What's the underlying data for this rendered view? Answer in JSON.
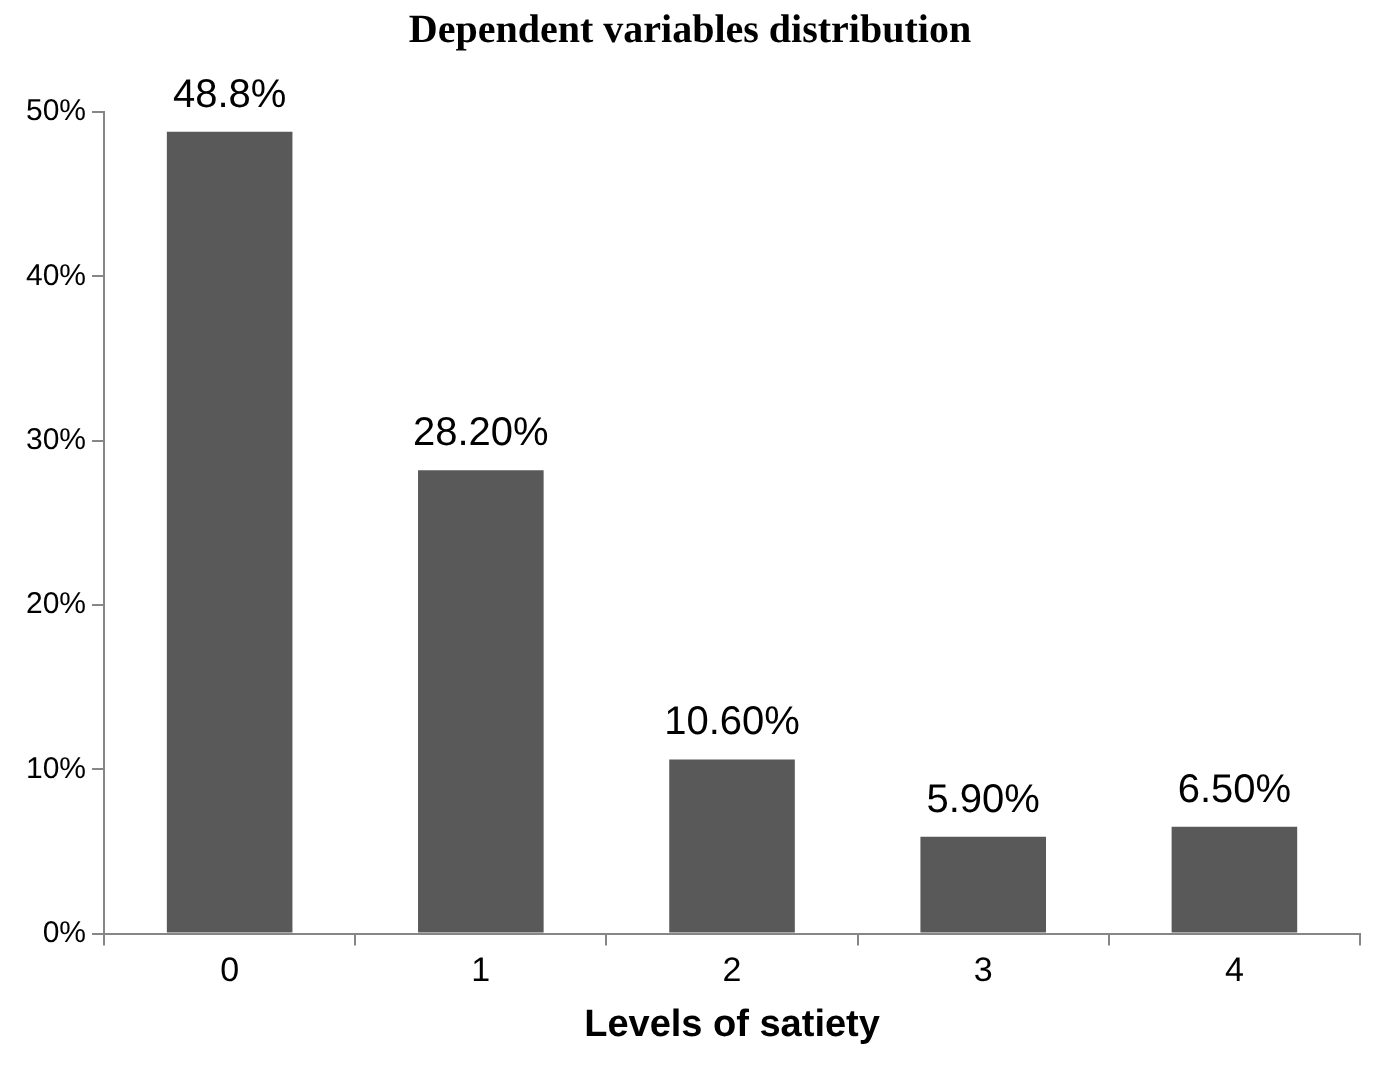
{
  "chart_data": {
    "type": "bar",
    "title": "Dependent variables distribution",
    "xlabel": "Levels of satiety",
    "categories": [
      "0",
      "1",
      "2",
      "3",
      "4"
    ],
    "values": [
      48.8,
      28.2,
      10.6,
      5.9,
      6.5
    ],
    "value_labels": [
      "48.8%",
      "28.20%",
      "10.60%",
      "5.90%",
      "6.50%"
    ],
    "color": "#595959",
    "ylim": [
      0,
      50
    ],
    "yticks": [
      {
        "value": 0,
        "label": "0%"
      },
      {
        "value": 10,
        "label": "10%"
      },
      {
        "value": 20,
        "label": "20%"
      },
      {
        "value": 30,
        "label": "30%"
      },
      {
        "value": 40,
        "label": "40%"
      },
      {
        "value": 50,
        "label": "50%"
      }
    ],
    "grid": false,
    "legend": false
  }
}
